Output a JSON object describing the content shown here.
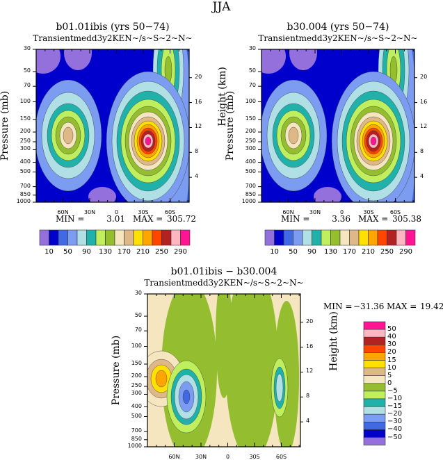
{
  "title": "JJA",
  "colors": [
    "#9370DB",
    "#0000CD",
    "#4169E1",
    "#7B9CF0",
    "#B0E0E6",
    "#20B2AA",
    "#BFEF5F",
    "#94BE2F",
    "#F5E6C0",
    "#DEB887",
    "#FFE000",
    "#FFA500",
    "#FF4500",
    "#B22222",
    "#FFB6C1",
    "#FF1493"
  ],
  "chart_data": [
    {
      "type": "heatmap",
      "subtype": "filled-contour",
      "title": "b01.01ibis (yrs 50−74)",
      "subtitle": "Transientmedd3y2KEN~/s~S~2~N~",
      "ylabel": "Pressure (mb)",
      "ylabel_right": "Height (km)",
      "y_scale": "log",
      "ylim": [
        1000,
        30
      ],
      "y_ticks": [
        "30",
        "50",
        "70",
        "100",
        "150",
        "200",
        "250",
        "300",
        "400",
        "500",
        "700",
        "850",
        "1000"
      ],
      "y_right_ticks": [
        "4",
        "8",
        "12",
        "16",
        "20"
      ],
      "x_ticks": [
        "60N",
        "30N",
        "0",
        "30S",
        "60S"
      ],
      "min_label": "MIN =",
      "min_value": "3.01",
      "max_label": "MAX =",
      "max_value": "305.72",
      "colorbar_labels": [
        "10",
        "50",
        "90",
        "130",
        "170",
        "210",
        "250",
        "290"
      ],
      "colorbar_orientation": "horizontal"
    },
    {
      "type": "heatmap",
      "subtype": "filled-contour",
      "title": "b30.004 (yrs 50−74)",
      "subtitle": "Transientmedd3y2KEN~/s~S~2~N~",
      "ylabel": "Pressure (mb)",
      "ylabel_right": "Height (km)",
      "y_scale": "log",
      "ylim": [
        1000,
        30
      ],
      "y_ticks": [
        "30",
        "50",
        "70",
        "100",
        "150",
        "200",
        "250",
        "300",
        "400",
        "500",
        "700",
        "850",
        "1000"
      ],
      "y_right_ticks": [
        "4",
        "8",
        "12",
        "16",
        "20"
      ],
      "x_ticks": [
        "60N",
        "30N",
        "0",
        "30S",
        "60S"
      ],
      "min_label": "MIN =",
      "min_value": "3.36",
      "max_label": "MAX =",
      "max_value": "305.38",
      "colorbar_labels": [
        "10",
        "50",
        "90",
        "130",
        "170",
        "210",
        "250",
        "290"
      ],
      "colorbar_orientation": "horizontal"
    },
    {
      "type": "heatmap",
      "subtype": "filled-contour",
      "title": "b01.01ibis − b30.004",
      "subtitle": "Transientmedd3y2KEN~/s~S~2~N~",
      "ylabel": "Pressure (mb)",
      "ylabel_right": "Height (km)",
      "y_scale": "log",
      "ylim": [
        1000,
        30
      ],
      "y_ticks": [
        "30",
        "50",
        "70",
        "100",
        "150",
        "200",
        "250",
        "300",
        "400",
        "500",
        "700",
        "850",
        "1000"
      ],
      "y_right_ticks": [
        "4",
        "8",
        "12",
        "16",
        "20"
      ],
      "x_ticks": [
        "60N",
        "30N",
        "0",
        "30S",
        "60S"
      ],
      "min_label": "MIN =",
      "min_value": "−31.36",
      "max_label": "MAX =",
      "max_value": "19.42",
      "colorbar_labels": [
        "50",
        "40",
        "30",
        "20",
        "15",
        "10",
        "5",
        "0",
        "−5",
        "−10",
        "−15",
        "−20",
        "−30",
        "−40",
        "−50"
      ],
      "colorbar_orientation": "vertical"
    }
  ]
}
